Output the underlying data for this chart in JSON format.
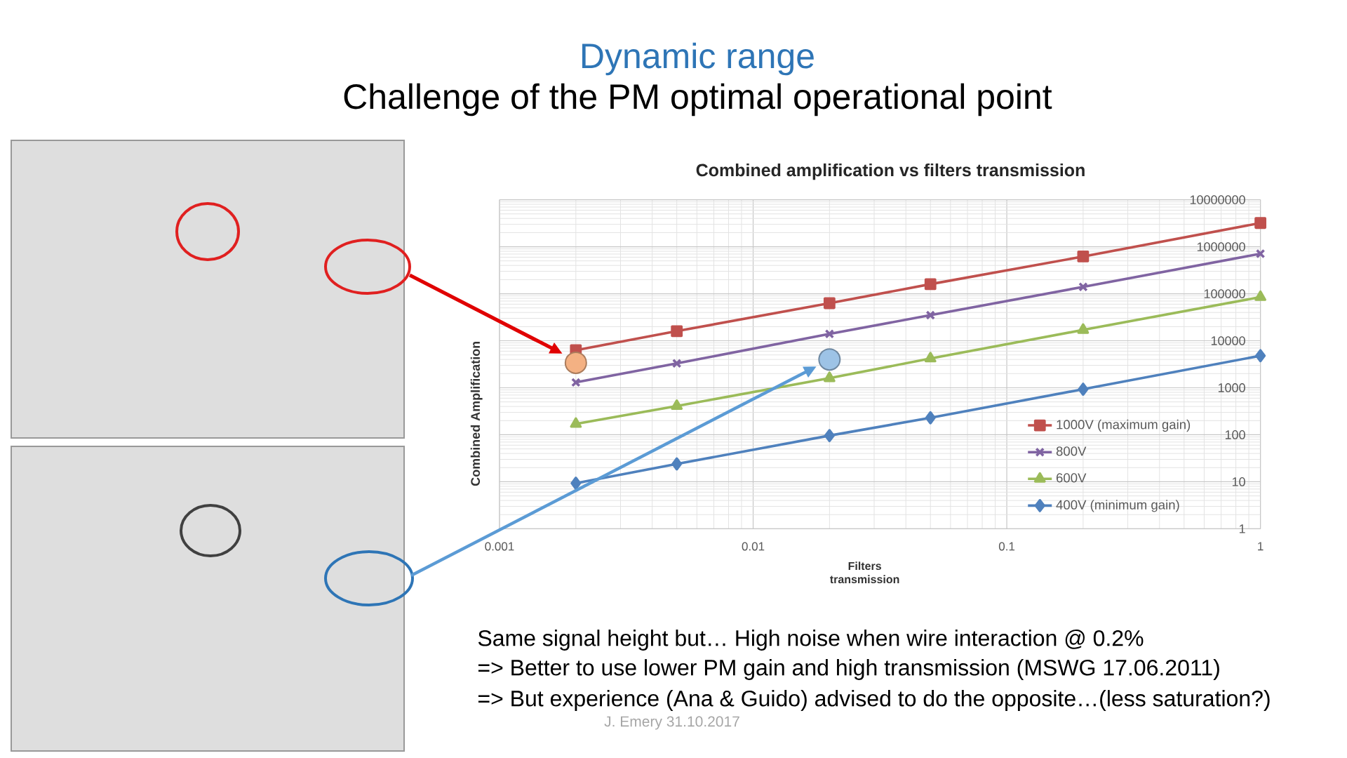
{
  "chart_data": {
    "type": "line",
    "title": "Combined amplification vs filters transmission",
    "xlabel": "Filters transmission",
    "ylabel": "Combined Amplification",
    "x": [
      0.002,
      0.005,
      0.02,
      0.05,
      0.2,
      1
    ],
    "series": [
      {
        "name": "1000V (maximum gain)",
        "color": "#c0504d",
        "marker": "square",
        "values": [
          6300,
          16000,
          63000,
          160000,
          620000,
          3200000
        ]
      },
      {
        "name": "800V",
        "color": "#8064a2",
        "marker": "cross",
        "values": [
          1300,
          3300,
          14000,
          35000,
          140000,
          710000
        ]
      },
      {
        "name": "600V",
        "color": "#9bbb59",
        "marker": "triangle",
        "values": [
          170,
          410,
          1600,
          4200,
          17000,
          85000
        ]
      },
      {
        "name": "400V (minimum gain)",
        "color": "#4f81bd",
        "marker": "diamond",
        "values": [
          9.3,
          24,
          96,
          230,
          930,
          4800
        ]
      },
      {
        "type": "scatter",
        "x": [
          0.002,
          0.02
        ],
        "values": [
          3400,
          4000
        ],
        "colors": [
          "#f4b183",
          "#9dc3e6"
        ],
        "marker": "circle"
      }
    ],
    "log": "xy",
    "xlim": [
      0.001,
      1
    ],
    "ylim": [
      1,
      10000000
    ],
    "xticks": [
      0.001,
      0.01,
      0.1,
      1
    ],
    "yticks": [
      1,
      10,
      100,
      1000,
      10000,
      100000,
      1000000,
      10000000
    ],
    "grid": true,
    "legend": "bottom right",
    "annotations": [
      "Dynamic range",
      "Challenge of the PM optimal operational point",
      "Same signal height but… High noise when wire interaction @ 0.2%",
      "=> Better to use lower PM gain and high transmission (MSWG 17.06.2011)",
      "=> But experience (Ana & Guido) advised to do the opposite…(less saturation?)",
      "J. Emery 31.10.2017"
    ]
  }
}
